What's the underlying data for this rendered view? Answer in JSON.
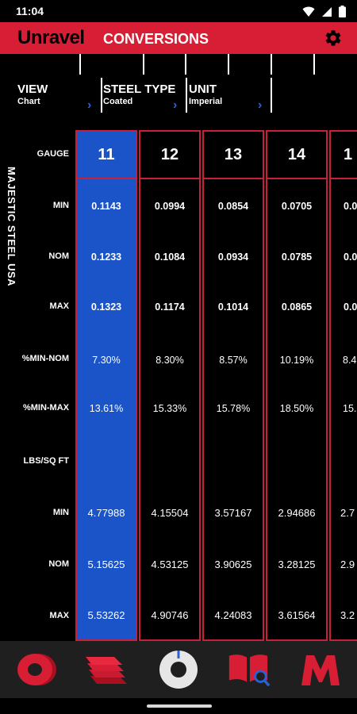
{
  "status_bar": {
    "time": "11:04"
  },
  "header": {
    "brand": "Unravel",
    "title": "CONVERSIONS"
  },
  "selectors": [
    {
      "label": "VIEW",
      "value": "Chart"
    },
    {
      "label": "STEEL TYPE",
      "value": "Coated"
    },
    {
      "label": "UNIT",
      "value": "Imperial"
    }
  ],
  "side_brand": "MAJESTIC STEEL USA",
  "row_labels": {
    "gauge": "GAUGE",
    "min": "MIN",
    "nom": "NOM",
    "max": "MAX",
    "pct_min_nom": "%MIN-NOM",
    "pct_min_max": "%MIN-MAX",
    "lbs_sq_ft": "LBS/SQ FT",
    "lbs_min": "MIN",
    "lbs_nom": "NOM",
    "lbs_max": "MAX"
  },
  "columns": [
    {
      "gauge": "11",
      "min": "0.1143",
      "nom": "0.1233",
      "max": "0.1323",
      "pct_min_nom": "7.30%",
      "pct_min_max": "13.61%",
      "lbs_min": "4.77988",
      "lbs_nom": "5.15625",
      "lbs_max": "5.53262",
      "selected": true
    },
    {
      "gauge": "12",
      "min": "0.0994",
      "nom": "0.1084",
      "max": "0.1174",
      "pct_min_nom": "8.30%",
      "pct_min_max": "15.33%",
      "lbs_min": "4.15504",
      "lbs_nom": "4.53125",
      "lbs_max": "4.90746"
    },
    {
      "gauge": "13",
      "min": "0.0854",
      "nom": "0.0934",
      "max": "0.1014",
      "pct_min_nom": "8.57%",
      "pct_min_max": "15.78%",
      "lbs_min": "3.57167",
      "lbs_nom": "3.90625",
      "lbs_max": "4.24083"
    },
    {
      "gauge": "14",
      "min": "0.0705",
      "nom": "0.0785",
      "max": "0.0865",
      "pct_min_nom": "10.19%",
      "pct_min_max": "18.50%",
      "lbs_min": "2.94686",
      "lbs_nom": "3.28125",
      "lbs_max": "3.61564"
    },
    {
      "gauge": "1",
      "min": "0.0",
      "nom": "0.0",
      "max": "0.0",
      "pct_min_nom": "8.4",
      "pct_min_max": "15.",
      "lbs_min": "2.7",
      "lbs_nom": "2.9",
      "lbs_max": "3.2"
    }
  ],
  "bottom_nav": [
    {
      "icon": "coil-icon"
    },
    {
      "icon": "sheets-icon"
    },
    {
      "icon": "conversions-icon"
    },
    {
      "icon": "catalog-search-icon"
    },
    {
      "icon": "majestic-logo-icon"
    }
  ],
  "colors": {
    "brand_red": "#d81e34",
    "selected_blue": "#1a54c8",
    "chevron_blue": "#2a62d6",
    "nav_bg": "#1f1f1f"
  }
}
